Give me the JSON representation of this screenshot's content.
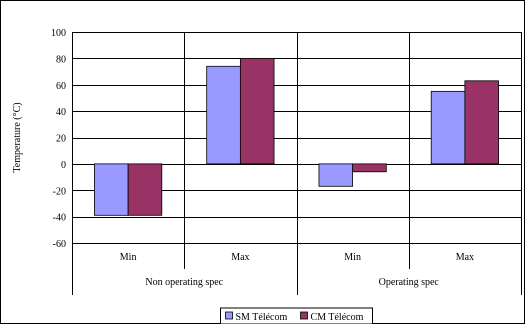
{
  "chart_data": {
    "type": "bar",
    "ylabel": "Temperature (°C)",
    "ylim": [
      -60,
      100
    ],
    "ytick_step": 20,
    "yticks": [
      "100",
      "80",
      "60",
      "40",
      "20",
      "0",
      "-20",
      "-40",
      "-60"
    ],
    "grid": true,
    "legend_position": "bottom-center",
    "categories": [
      "Min",
      "Max",
      "Min",
      "Max"
    ],
    "groups": [
      {
        "label": "Non operating spec",
        "categories": [
          "Min",
          "Max"
        ]
      },
      {
        "label": "Operating spec",
        "categories": [
          "Min",
          "Max"
        ]
      }
    ],
    "series": [
      {
        "name": "SM Télécom",
        "color": "#9999ff",
        "values": [
          -39,
          74,
          -17,
          55
        ]
      },
      {
        "name": "CM Télécom",
        "color": "#993366",
        "values": [
          -39,
          80,
          -6,
          63
        ]
      }
    ]
  }
}
